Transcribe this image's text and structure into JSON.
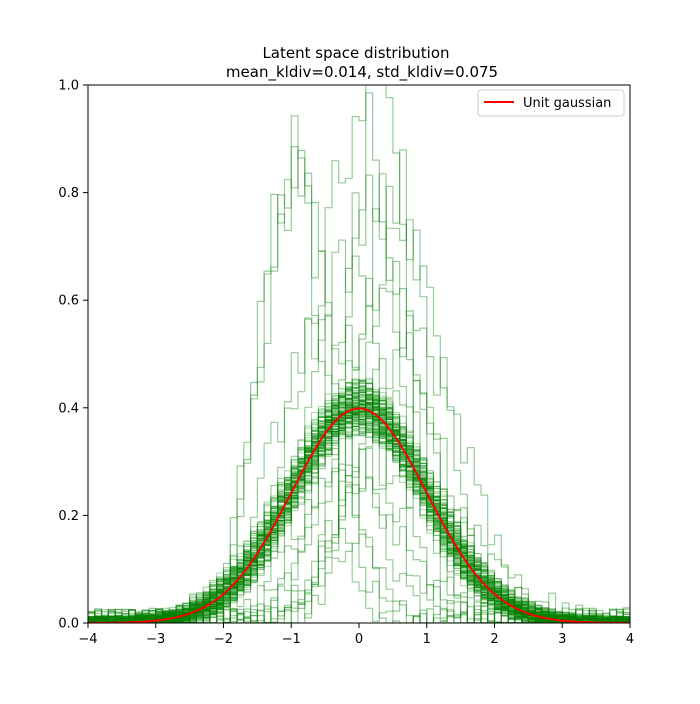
{
  "chart_data": {
    "type": "line",
    "title": "Latent space distribution",
    "subtitle": "mean_kldiv=0.014, std_kldiv=0.075",
    "xlabel": "",
    "ylabel": "",
    "xlim": [
      -4,
      4
    ],
    "ylim": [
      0,
      1.0
    ],
    "xticks": [
      -4,
      -3,
      -2,
      -1,
      0,
      1,
      2,
      3,
      4
    ],
    "xtick_labels": [
      "−4",
      "−3",
      "−2",
      "−1",
      "0",
      "1",
      "2",
      "3",
      "4"
    ],
    "yticks": [
      0.0,
      0.2,
      0.4,
      0.6,
      0.8,
      1.0
    ],
    "ytick_labels": [
      "0.0",
      "0.2",
      "0.4",
      "0.6",
      "0.8",
      "1.0"
    ],
    "grid": false,
    "legend": {
      "position": "top-right",
      "entries": [
        "Unit gaussian"
      ]
    },
    "reference_curve": {
      "name": "Unit gaussian",
      "color": "#ff0000",
      "x": [
        -4,
        -3.5,
        -3,
        -2.5,
        -2,
        -1.5,
        -1,
        -0.5,
        0,
        0.5,
        1,
        1.5,
        2,
        2.5,
        3,
        3.5,
        4
      ],
      "y": [
        0.0001,
        0.0009,
        0.0044,
        0.0175,
        0.054,
        0.1295,
        0.242,
        0.3521,
        0.3989,
        0.3521,
        0.242,
        0.1295,
        0.054,
        0.0175,
        0.0044,
        0.0009,
        0.0001
      ]
    },
    "histogram_color": "#008000",
    "histogram_band": {
      "count": 120,
      "peak_min": 0.37,
      "peak_max": 0.43
    },
    "outlier_histograms": [
      {
        "mean": -1.0,
        "std": 0.45,
        "peak": 0.89
      },
      {
        "mean": -0.95,
        "std": 0.5,
        "peak": 0.86
      },
      {
        "mean": -0.9,
        "std": 0.55,
        "peak": 0.81
      },
      {
        "mean": 0.3,
        "std": 0.45,
        "peak": 0.99
      },
      {
        "mean": 0.0,
        "std": 0.6,
        "peak": 0.92
      },
      {
        "mean": 0.5,
        "std": 0.5,
        "peak": 0.85
      },
      {
        "mean": 0.2,
        "std": 0.55,
        "peak": 0.79
      },
      {
        "mean": 0.7,
        "std": 0.6,
        "peak": 0.72
      },
      {
        "mean": -0.3,
        "std": 0.7,
        "peak": 0.67
      },
      {
        "mean": 0.4,
        "std": 0.7,
        "peak": 0.61
      },
      {
        "mean": -0.5,
        "std": 0.75,
        "peak": 0.56
      },
      {
        "mean": 0.8,
        "std": 0.8,
        "peak": 0.52
      },
      {
        "mean": 0.0,
        "std": 0.4,
        "peak": 0.29
      },
      {
        "mean": 0.1,
        "std": 0.55,
        "peak": 0.24
      },
      {
        "mean": 0.0,
        "std": 0.35,
        "peak": 0.18
      },
      {
        "mean": -0.1,
        "std": 1.1,
        "peak": 0.33
      },
      {
        "mean": 0.2,
        "std": 1.2,
        "peak": 0.3
      },
      {
        "mean": 0.4,
        "std": 0.9,
        "peak": 0.45
      }
    ]
  }
}
